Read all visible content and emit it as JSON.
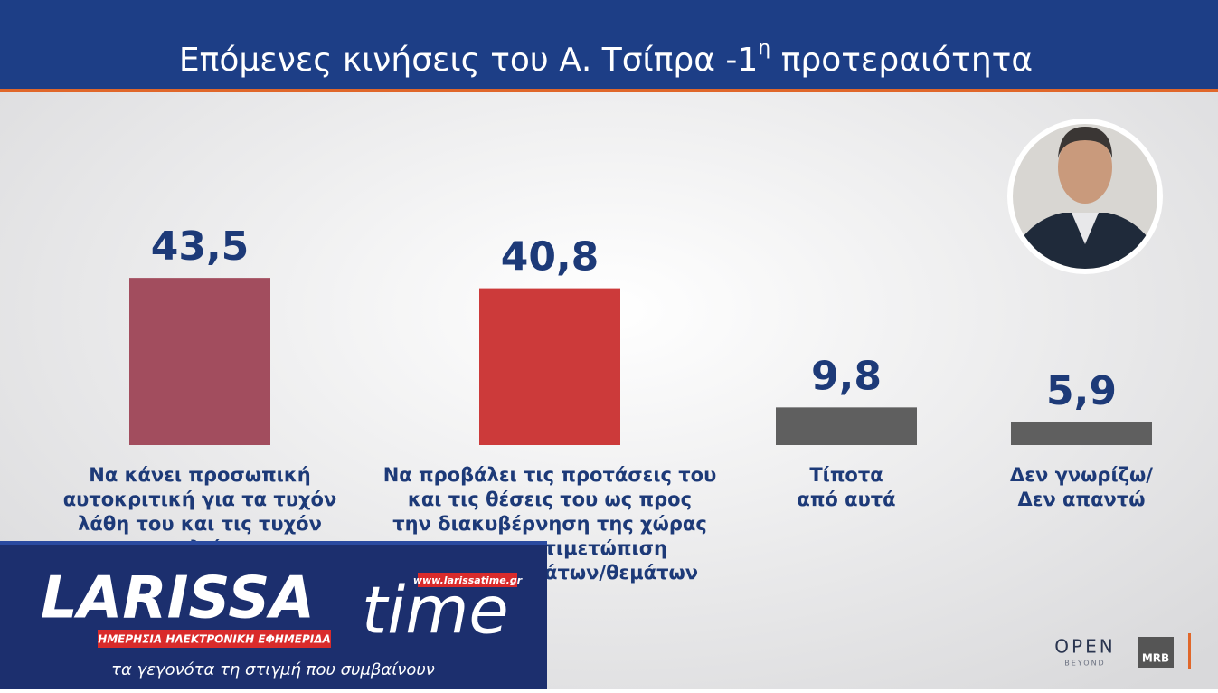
{
  "chart_data": {
    "type": "bar",
    "title": [
      "Επόμενες κινήσεις του Α. Τσίπρα -1",
      "η",
      " προτεραιότητα"
    ],
    "categories": [
      [
        "Να κάνει προσωπική",
        "αυτοκριτική για τα τυχόν",
        "λάθη του και τις τυχόν",
        "παραλείψεις"
      ],
      [
        "Να προβάλει τις προτάσεις του",
        "και τις θέσεις του ως προς",
        "την διακυβέρνηση της χώρας",
        "και την αντιμετώπιση",
        "των προβλημάτων/θεμάτων"
      ],
      [
        "Τίποτα",
        "από αυτά"
      ],
      [
        "Δεν γνωρίζω/",
        "Δεν απαντώ"
      ]
    ],
    "values": [
      43.5,
      40.8,
      9.8,
      5.9
    ],
    "value_labels": [
      "43,5",
      "40,8",
      "9,8",
      "5,9"
    ],
    "colors": [
      "#a24d5e",
      "#cc3a3a",
      "#5f5f5f",
      "#5f5f5f"
    ]
  },
  "logo": {
    "name": "LARISSA",
    "name_end": "time",
    "url": "www.larissatime.gr",
    "tagline": "ΗΜΕΡΗΣΙΑ ΗΛΕΚΤΡΟΝΙΚΗ ΕΦΗΜΕΡΙΔΑ",
    "slogan": "τα γεγονότα τη στιγμή που συμβαίνουν"
  },
  "branding": {
    "channel": "OPEN",
    "channel_sub": "BEYOND",
    "pollster": "MRB"
  }
}
